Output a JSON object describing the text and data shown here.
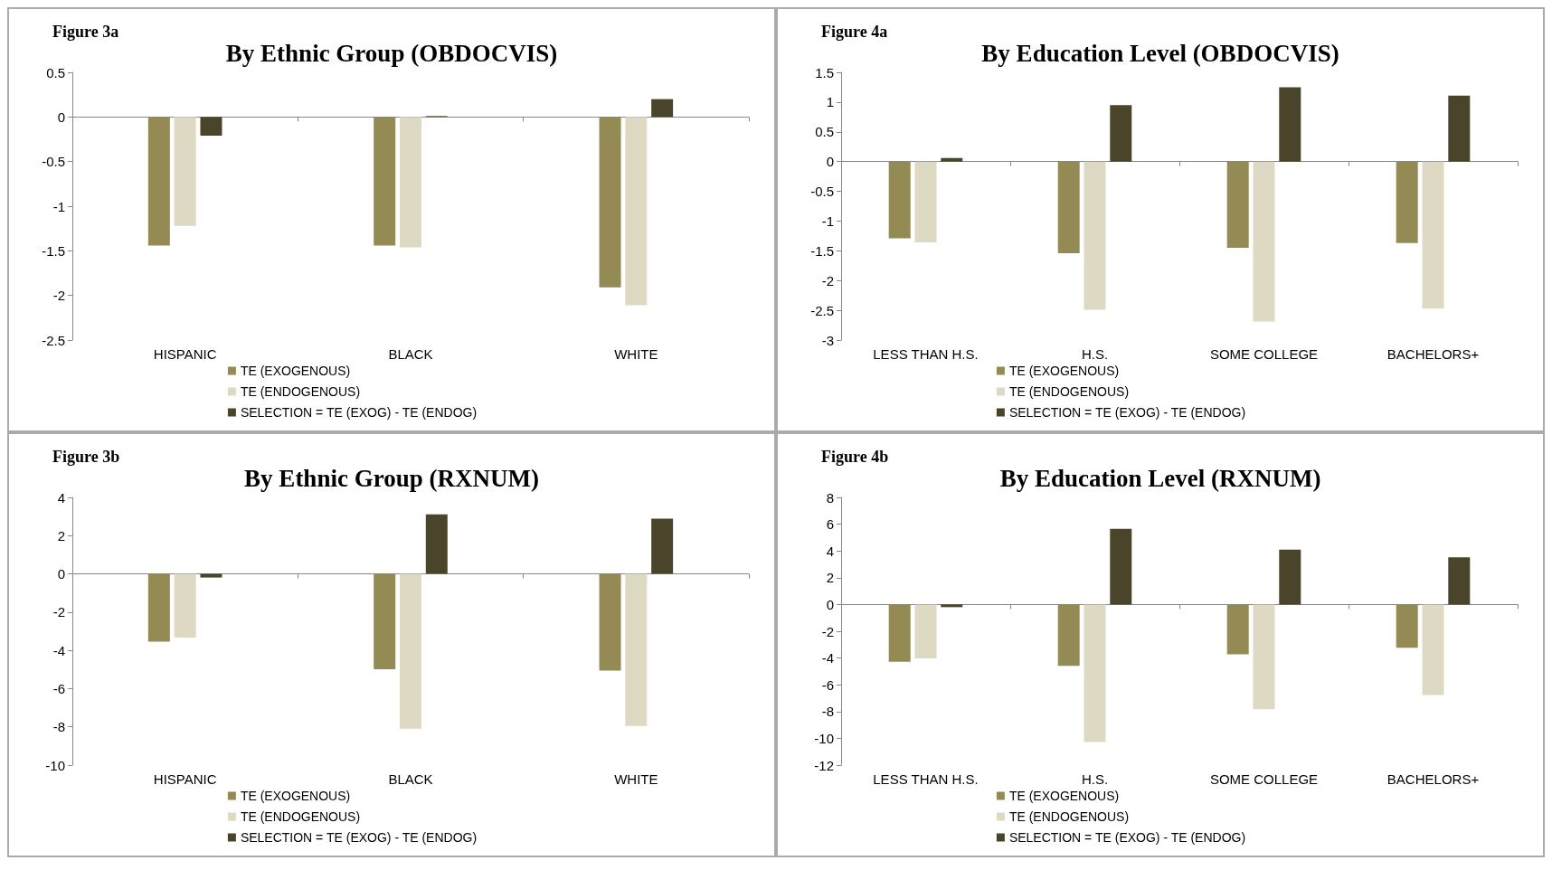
{
  "chart_data": [
    {
      "type": "bar",
      "title": "By Ethnic Group (OBDOCVIS)",
      "annotations": [
        "Figure 3a"
      ],
      "categories": [
        "HISPANIC",
        "BLACK",
        "WHITE"
      ],
      "series": [
        {
          "name": "TE (EXOGENOUS)",
          "color": "#948a54",
          "values": [
            -1.44,
            -1.44,
            -1.91
          ]
        },
        {
          "name": "TE (ENDOGENOUS)",
          "color": "#ddd9c3",
          "values": [
            -1.22,
            -1.46,
            -2.11
          ]
        },
        {
          "name": "SELECTION = TE (EXOG) - TE (ENDOG)",
          "color": "#4a442a",
          "values": [
            -0.21,
            0.01,
            0.2
          ]
        }
      ],
      "ylim": [
        -2.5,
        0.5
      ],
      "yticks": [
        -2.5,
        -2,
        -1.5,
        -1,
        -0.5,
        0,
        0.5
      ],
      "legend": "bottom"
    },
    {
      "type": "bar",
      "title": "By Education Level (OBDOCVIS)",
      "annotations": [
        "Figure 4a"
      ],
      "categories": [
        "LESS THAN H.S.",
        "H.S.",
        "SOME COLLEGE",
        "BACHELORS+"
      ],
      "series": [
        {
          "name": "TE (EXOGENOUS)",
          "color": "#948a54",
          "values": [
            -1.29,
            -1.54,
            -1.45,
            -1.37
          ]
        },
        {
          "name": "TE (ENDOGENOUS)",
          "color": "#ddd9c3",
          "values": [
            -1.36,
            -2.49,
            -2.69,
            -2.47
          ]
        },
        {
          "name": "SELECTION = TE (EXOG) - TE (ENDOG)",
          "color": "#4a442a",
          "values": [
            0.06,
            0.95,
            1.25,
            1.11
          ]
        }
      ],
      "ylim": [
        -3,
        1.5
      ],
      "yticks": [
        -3,
        -2.5,
        -2,
        -1.5,
        -1,
        -0.5,
        0,
        0.5,
        1,
        1.5
      ],
      "legend": "bottom"
    },
    {
      "type": "bar",
      "title": "By Ethnic Group (RXNUM)",
      "annotations": [
        "Figure 3b"
      ],
      "categories": [
        "HISPANIC",
        "BLACK",
        "WHITE"
      ],
      "series": [
        {
          "name": "TE (EXOGENOUS)",
          "color": "#948a54",
          "values": [
            -3.54,
            -4.99,
            -5.06
          ]
        },
        {
          "name": "TE (ENDOGENOUS)",
          "color": "#ddd9c3",
          "values": [
            -3.33,
            -8.1,
            -7.95
          ]
        },
        {
          "name": "SELECTION = TE (EXOG) - TE (ENDOG)",
          "color": "#4a442a",
          "values": [
            -0.19,
            3.11,
            2.89
          ]
        }
      ],
      "ylim": [
        -10,
        4
      ],
      "yticks": [
        -10,
        -8,
        -6,
        -4,
        -2,
        0,
        2,
        4
      ],
      "legend": "bottom"
    },
    {
      "type": "bar",
      "title": "By Education Level (RXNUM)",
      "annotations": [
        "Figure 4b"
      ],
      "categories": [
        "LESS THAN H.S.",
        "H.S.",
        "SOME COLLEGE",
        "BACHELORS+"
      ],
      "series": [
        {
          "name": "TE (EXOGENOUS)",
          "color": "#948a54",
          "values": [
            -4.28,
            -4.59,
            -3.72,
            -3.24
          ]
        },
        {
          "name": "TE (ENDOGENOUS)",
          "color": "#ddd9c3",
          "values": [
            -4.03,
            -10.28,
            -7.83,
            -6.76
          ]
        },
        {
          "name": "SELECTION = TE (EXOG) - TE (ENDOG)",
          "color": "#4a442a",
          "values": [
            -0.2,
            5.66,
            4.1,
            3.52
          ]
        }
      ],
      "ylim": [
        -12,
        8
      ],
      "yticks": [
        -12,
        -10,
        -8,
        -6,
        -4,
        -2,
        0,
        2,
        4,
        6,
        8
      ],
      "legend": "bottom"
    }
  ]
}
